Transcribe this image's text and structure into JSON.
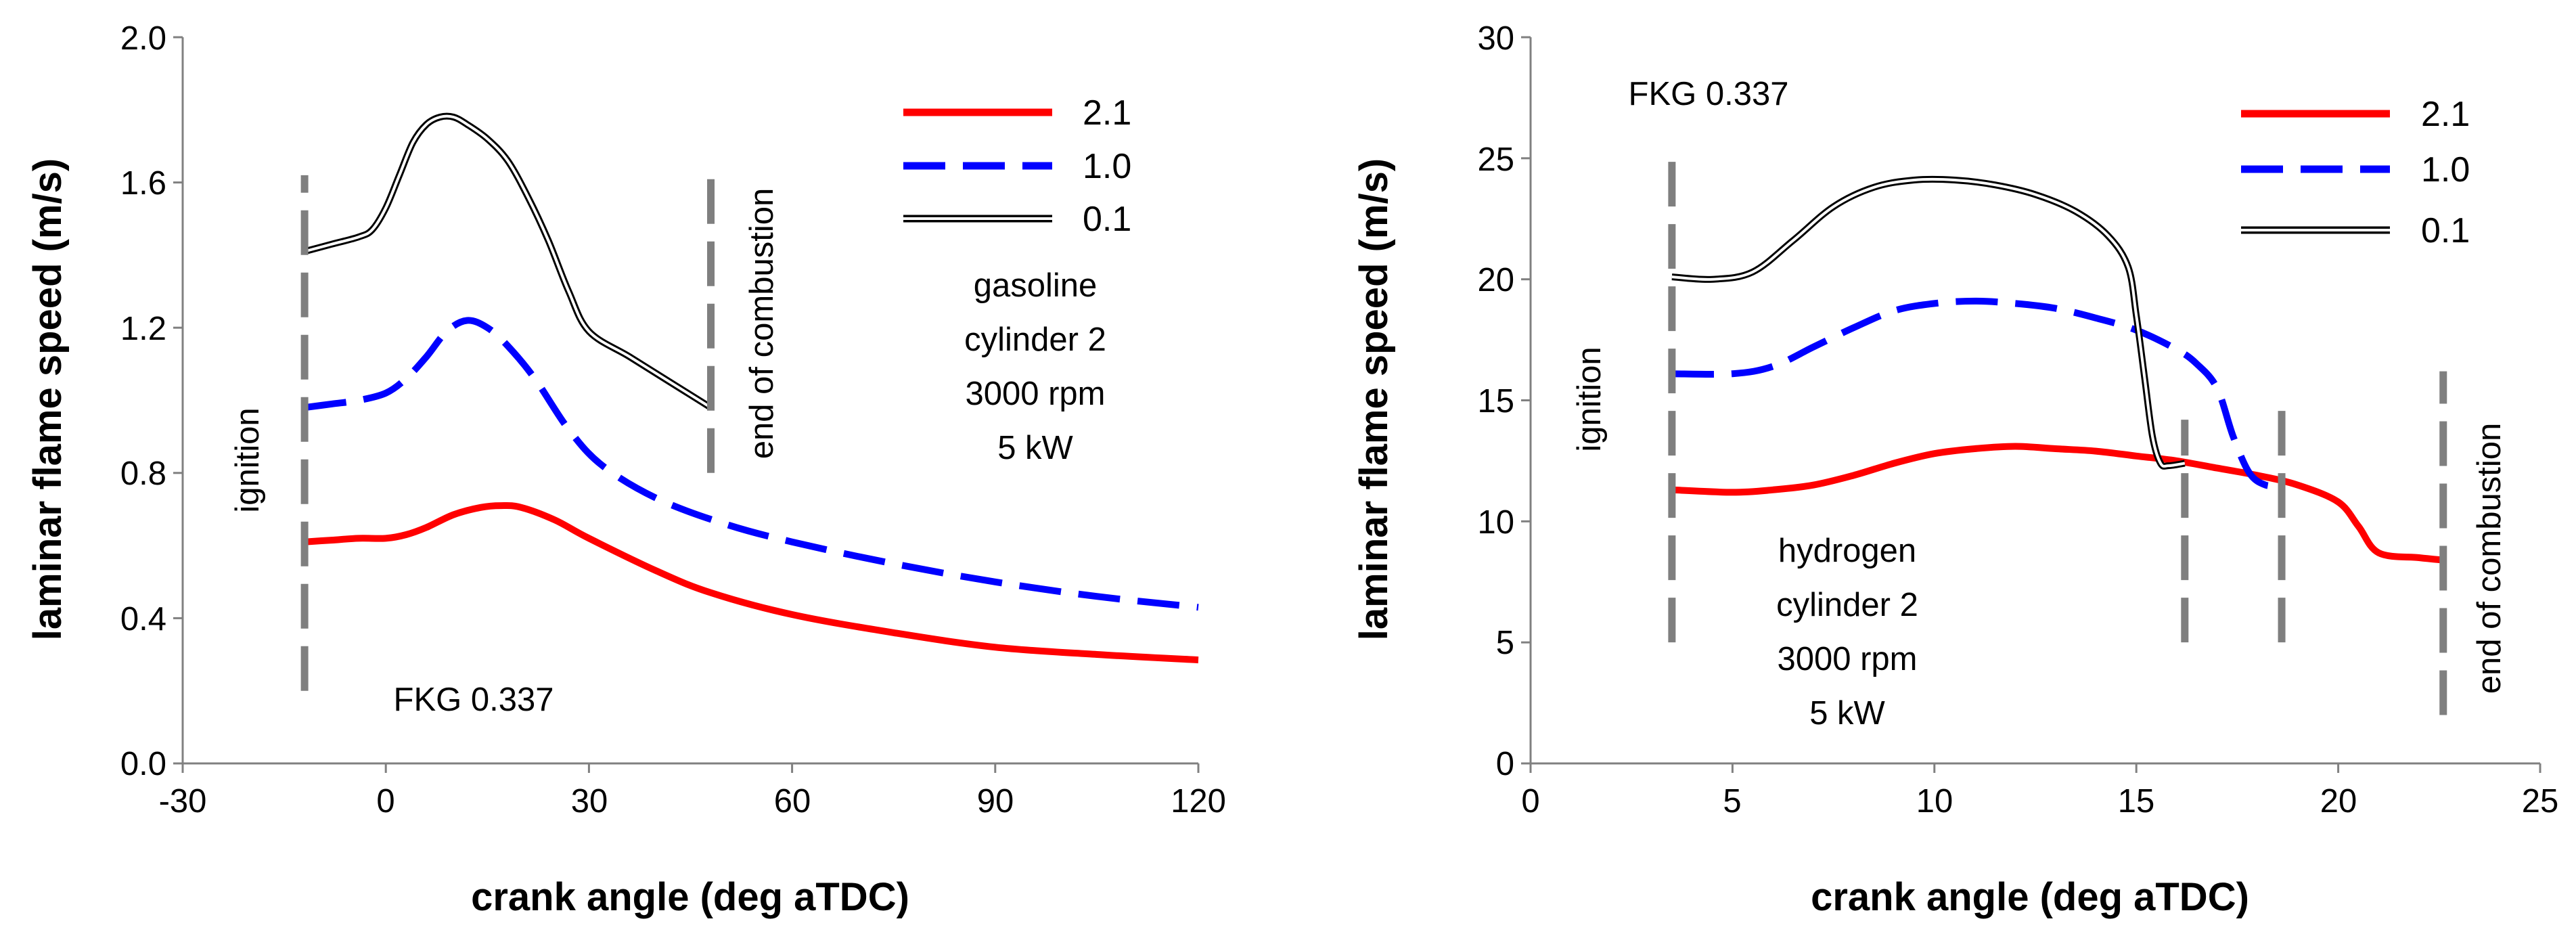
{
  "chart_data": [
    {
      "type": "line",
      "xlabel": "crank angle (deg aTDC)",
      "ylabel": "laminar flame speed (m/s)",
      "xlim": [
        -30,
        120
      ],
      "ylim": [
        0,
        2
      ],
      "xticks": [
        -30,
        0,
        30,
        60,
        90,
        120
      ],
      "xtick_labels": [
        "-30",
        "0",
        "30",
        "60",
        "90",
        "120"
      ],
      "yticks": [
        0,
        0.4,
        0.8,
        1.2,
        1.6,
        2.0
      ],
      "ytick_labels": [
        "0.0",
        "0.4",
        "0.8",
        "1.2",
        "1.6",
        "2.0"
      ],
      "legend_position": "top-right",
      "series": [
        {
          "name": "2.1",
          "color": "#ff0000",
          "style": "solid",
          "x": [
            -12,
            -8,
            -4,
            0,
            3,
            6,
            10,
            14,
            17,
            20,
            25,
            30,
            40,
            48,
            60,
            75,
            90,
            105,
            120
          ],
          "y": [
            0.61,
            0.615,
            0.62,
            0.62,
            0.63,
            0.65,
            0.685,
            0.705,
            0.71,
            0.705,
            0.67,
            0.62,
            0.53,
            0.47,
            0.41,
            0.36,
            0.32,
            0.3,
            0.285
          ]
        },
        {
          "name": "1.0",
          "color": "#0000ff",
          "style": "dashed",
          "x": [
            -12,
            -8,
            -4,
            0,
            3,
            6,
            9,
            12,
            15,
            18,
            22,
            27,
            32,
            40,
            50,
            60,
            75,
            90,
            105,
            120
          ],
          "y": [
            0.98,
            0.99,
            1.0,
            1.02,
            1.06,
            1.12,
            1.19,
            1.22,
            1.2,
            1.15,
            1.06,
            0.92,
            0.82,
            0.73,
            0.66,
            0.61,
            0.55,
            0.5,
            0.46,
            0.43
          ]
        },
        {
          "name": "0.1",
          "color": "#000000",
          "style": "double",
          "x": [
            -12,
            -8,
            -4,
            -2,
            0,
            2,
            4,
            6,
            8,
            10,
            12,
            15,
            18,
            21,
            24,
            27,
            30,
            36,
            42,
            48
          ],
          "y": [
            1.41,
            1.43,
            1.45,
            1.47,
            1.53,
            1.62,
            1.71,
            1.76,
            1.78,
            1.78,
            1.76,
            1.72,
            1.66,
            1.56,
            1.44,
            1.3,
            1.19,
            1.12,
            1.05,
            0.98
          ]
        }
      ],
      "markers": [
        {
          "label": "ignition",
          "x": -12,
          "y_range": [
            0.2,
            1.62
          ]
        },
        {
          "label": "end of combustion",
          "x": 48,
          "y_range": [
            0.8,
            1.62
          ]
        }
      ],
      "annotations": {
        "fkg": "FKG 0.337",
        "fuel_lines": [
          "gasoline",
          "cylinder 2",
          "3000 rpm",
          "5 kW"
        ]
      }
    },
    {
      "type": "line",
      "xlabel": "crank angle (deg aTDC)",
      "ylabel": "laminar flame speed (m/s)",
      "xlim": [
        0,
        25
      ],
      "ylim": [
        0,
        30
      ],
      "xticks": [
        0,
        5,
        10,
        15,
        20,
        25
      ],
      "xtick_labels": [
        "0",
        "5",
        "10",
        "15",
        "20",
        "25"
      ],
      "yticks": [
        0,
        5,
        10,
        15,
        20,
        25,
        30
      ],
      "ytick_labels": [
        "0",
        "5",
        "10",
        "15",
        "20",
        "25",
        "30"
      ],
      "legend_position": "top-right",
      "series": [
        {
          "name": "2.1",
          "color": "#ff0000",
          "style": "solid",
          "x": [
            3.5,
            5,
            6,
            7,
            8,
            9,
            10,
            11,
            12,
            13,
            14,
            15,
            16,
            17,
            18,
            19,
            20,
            20.5,
            21,
            22,
            22.6
          ],
          "y": [
            11.3,
            11.2,
            11.3,
            11.5,
            11.9,
            12.4,
            12.8,
            13.0,
            13.1,
            13.0,
            12.9,
            12.7,
            12.5,
            12.2,
            11.9,
            11.5,
            10.8,
            9.8,
            8.7,
            8.5,
            8.4
          ]
        },
        {
          "name": "1.0",
          "color": "#0000ff",
          "style": "dashed",
          "x": [
            3.5,
            5,
            6,
            7,
            8,
            9,
            10,
            11,
            12,
            13,
            14,
            15,
            16,
            16.5,
            17,
            17.4,
            17.8,
            18.2,
            18.6
          ],
          "y": [
            16.1,
            16.1,
            16.4,
            17.2,
            18.0,
            18.7,
            19.0,
            19.1,
            19.0,
            18.8,
            18.4,
            17.9,
            17.1,
            16.5,
            15.5,
            13.5,
            12.0,
            11.5,
            11.5
          ]
        },
        {
          "name": "0.1",
          "color": "#000000",
          "style": "double",
          "x": [
            3.5,
            4.5,
            5.5,
            6.5,
            7.5,
            8.5,
            9.5,
            10.5,
            11.5,
            12.5,
            13.5,
            14.3,
            14.8,
            15.0,
            15.2,
            15.4,
            15.6,
            15.8,
            16.2
          ],
          "y": [
            20.1,
            20.0,
            20.3,
            21.6,
            23.0,
            23.8,
            24.1,
            24.1,
            23.9,
            23.5,
            22.8,
            21.8,
            20.5,
            18.5,
            16.0,
            13.5,
            12.4,
            12.3,
            12.4
          ]
        }
      ],
      "markers": [
        {
          "label": "ignition",
          "x": 3.5,
          "y_range": [
            5,
            25.2
          ]
        },
        {
          "label": "",
          "x": 16.2,
          "y_range": [
            5,
            14.2
          ]
        },
        {
          "label": "",
          "x": 18.6,
          "y_range": [
            5,
            15.2
          ]
        },
        {
          "label": "end of combustion",
          "x": 22.6,
          "y_range": [
            2,
            16.2
          ]
        }
      ],
      "annotations": {
        "fkg": "FKG 0.337",
        "fuel_lines": [
          "hydrogen",
          "cylinder 2",
          "3000 rpm",
          "5 kW"
        ]
      }
    }
  ]
}
